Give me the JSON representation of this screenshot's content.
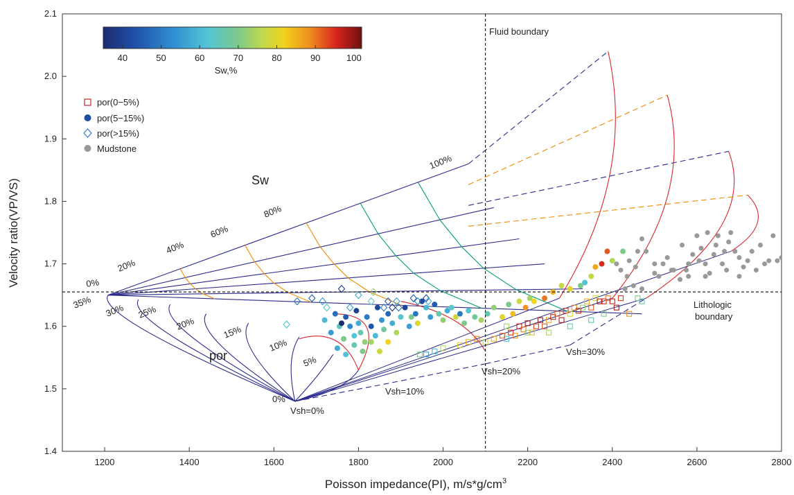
{
  "chart_data": {
    "type": "scatter",
    "xlabel": "Poisson impedance(PI), m/s*g/cm",
    "xlabel_sup": "3",
    "ylabel": "Velocity ratio(VP/VS)",
    "xlim": [
      1100,
      2800
    ],
    "ylim": [
      1.4,
      2.1
    ],
    "xticks": [
      "1200",
      "1400",
      "1600",
      "1800",
      "2000",
      "2200",
      "2400",
      "2600",
      "2800"
    ],
    "yticks": [
      "1.4",
      "1.5",
      "1.6",
      "1.7",
      "1.8",
      "1.9",
      "2.0",
      "2.1"
    ],
    "grid": false,
    "colorbar": {
      "label": "Sw,%",
      "ticks": [
        "40",
        "50",
        "60",
        "70",
        "80",
        "90",
        "100"
      ],
      "range": [
        35,
        102
      ],
      "colormap": "jet"
    },
    "legend": {
      "placement": "top-left",
      "items": [
        {
          "label": "por(0−5%)",
          "marker": "open-square",
          "color": "#c0272d"
        },
        {
          "label": "por(5−15%)",
          "marker": "filled-circle",
          "color": "#1f4e9c"
        },
        {
          "label": "por(>15%)",
          "marker": "open-diamond",
          "color": "#3a7bd5"
        },
        {
          "label": "Mudstone",
          "marker": "filled-circle",
          "color": "#999999"
        }
      ]
    },
    "reference_lines": [
      {
        "orientation": "vertical",
        "value": 2100,
        "label": "Fluid boundary"
      },
      {
        "orientation": "horizontal",
        "value": 1.655,
        "label_line1": "Lithologic",
        "label_line2": "boundary"
      }
    ],
    "annotations": {
      "sw_title": "Sw",
      "por_title": "por",
      "sw_labels": [
        "0%",
        "20%",
        "40%",
        "60%",
        "80%",
        "100%"
      ],
      "por_labels": [
        "35%",
        "30%",
        "25%",
        "20%",
        "15%",
        "10%",
        "5%",
        "0%"
      ],
      "vsh_labels": [
        "Vsh=0%",
        "Vsh=10%",
        "Vsh=20%",
        "Vsh=30%"
      ]
    },
    "template": {
      "solid_line_color": "#2b2a8c",
      "sw_line_color": "#f08a00",
      "green_line_color": "#00a06a",
      "red_line_color": "#d9252b",
      "vertex": [
        1650,
        1.48
      ],
      "por_points": [
        {
          "por": 35,
          "x": 1208,
          "y": 1.65
        },
        {
          "por": 30,
          "x": 1280,
          "y": 1.643
        },
        {
          "por": 25,
          "x": 1355,
          "y": 1.635
        },
        {
          "por": 20,
          "x": 1440,
          "y": 1.62
        },
        {
          "por": 15,
          "x": 1540,
          "y": 1.605
        },
        {
          "por": 10,
          "x": 1660,
          "y": 1.583
        },
        {
          "por": 5,
          "x": 1740,
          "y": 1.555
        },
        {
          "por": 0,
          "x": 1800,
          "y": 1.53
        }
      ],
      "sw100_end": [
        2060,
        1.86
      ],
      "shale_ends": [
        {
          "vsh": 10,
          "top": [
            2390,
            2.04
          ],
          "bottom": [
            2275,
            1.645
          ]
        },
        {
          "vsh": 20,
          "top": [
            2530,
            1.97
          ],
          "bottom": [
            2400,
            1.645
          ]
        },
        {
          "vsh": 30,
          "top": [
            2675,
            1.88
          ],
          "bottom": [
            2480,
            1.645
          ]
        },
        {
          "vsh": 40,
          "top": [
            2720,
            1.81
          ],
          "bottom": [
            2680,
            1.72
          ]
        }
      ],
      "vsh_base": [
        {
          "x": 1650,
          "y": 1.48
        },
        {
          "x": 1880,
          "y": 1.51
        },
        {
          "x": 2100,
          "y": 1.54
        },
        {
          "x": 2300,
          "y": 1.57
        },
        {
          "x": 2480,
          "y": 1.645
        }
      ]
    },
    "series": [
      {
        "name": "por(5−15%)",
        "points": [
          [
            1720,
            1.61,
            60
          ],
          [
            1735,
            1.59,
            55
          ],
          [
            1745,
            1.62,
            48
          ],
          [
            1755,
            1.6,
            65
          ],
          [
            1765,
            1.58,
            70
          ],
          [
            1770,
            1.615,
            45
          ],
          [
            1780,
            1.6,
            52
          ],
          [
            1790,
            1.585,
            62
          ],
          [
            1795,
            1.625,
            40
          ],
          [
            1800,
            1.605,
            58
          ],
          [
            1805,
            1.59,
            66
          ],
          [
            1815,
            1.575,
            72
          ],
          [
            1820,
            1.615,
            50
          ],
          [
            1830,
            1.6,
            44
          ],
          [
            1840,
            1.585,
            60
          ],
          [
            1845,
            1.63,
            42
          ],
          [
            1855,
            1.61,
            54
          ],
          [
            1860,
            1.595,
            68
          ],
          [
            1870,
            1.62,
            47
          ],
          [
            1880,
            1.605,
            58
          ],
          [
            1890,
            1.59,
            75
          ],
          [
            1900,
            1.615,
            63
          ],
          [
            1910,
            1.63,
            41
          ],
          [
            1920,
            1.6,
            56
          ],
          [
            1925,
            1.615,
            70
          ],
          [
            1935,
            1.62,
            49
          ],
          [
            1940,
            1.605,
            80
          ],
          [
            1950,
            1.64,
            42
          ],
          [
            1960,
            1.63,
            60
          ],
          [
            1970,
            1.615,
            55
          ],
          [
            1980,
            1.635,
            45
          ],
          [
            1990,
            1.62,
            66
          ],
          [
            2000,
            1.61,
            72
          ],
          [
            2010,
            1.625,
            58
          ],
          [
            2020,
            1.63,
            64
          ],
          [
            2030,
            1.615,
            78
          ],
          [
            2040,
            1.62,
            50
          ],
          [
            2050,
            1.605,
            70
          ],
          [
            2060,
            1.625,
            62
          ],
          [
            2075,
            1.615,
            68
          ],
          [
            2090,
            1.61,
            74
          ],
          [
            2105,
            1.62,
            66
          ],
          [
            2120,
            1.63,
            72
          ],
          [
            2140,
            1.615,
            80
          ],
          [
            2155,
            1.635,
            70
          ],
          [
            2165,
            1.62,
            84
          ],
          [
            2180,
            1.64,
            78
          ],
          [
            2195,
            1.63,
            88
          ],
          [
            2205,
            1.645,
            74
          ],
          [
            2215,
            1.64,
            82
          ],
          [
            2240,
            1.645,
            90
          ],
          [
            2260,
            1.655,
            85
          ],
          [
            2280,
            1.665,
            77
          ],
          [
            2300,
            1.66,
            80
          ],
          [
            2325,
            1.665,
            70
          ],
          [
            2335,
            1.67,
            62
          ],
          [
            2350,
            1.68,
            76
          ],
          [
            2360,
            1.695,
            86
          ],
          [
            2375,
            1.7,
            95
          ],
          [
            2388,
            1.72,
            92
          ],
          [
            2400,
            1.705,
            75
          ],
          [
            2425,
            1.72,
            70
          ],
          [
            1750,
            1.565,
            58
          ],
          [
            1770,
            1.555,
            62
          ],
          [
            1790,
            1.57,
            66
          ],
          [
            1810,
            1.56,
            70
          ],
          [
            1830,
            1.575,
            74
          ],
          [
            1850,
            1.56,
            78
          ],
          [
            1870,
            1.575,
            82
          ],
          [
            1760,
            1.605,
            30
          ]
        ]
      },
      {
        "name": "por(0−5%)",
        "points": [
          [
            2040,
            1.57,
            80
          ],
          [
            2060,
            1.575,
            85
          ],
          [
            2080,
            1.58,
            90
          ],
          [
            2100,
            1.575,
            78
          ],
          [
            2120,
            1.58,
            86
          ],
          [
            2140,
            1.585,
            92
          ],
          [
            2150,
            1.6,
            74
          ],
          [
            2160,
            1.59,
            95
          ],
          [
            2170,
            1.585,
            88
          ],
          [
            2180,
            1.6,
            96
          ],
          [
            2190,
            1.595,
            90
          ],
          [
            2200,
            1.605,
            98
          ],
          [
            2210,
            1.59,
            84
          ],
          [
            2220,
            1.6,
            94
          ],
          [
            2230,
            1.61,
            99
          ],
          [
            2240,
            1.6,
            92
          ],
          [
            2250,
            1.61,
            86
          ],
          [
            2260,
            1.615,
            96
          ],
          [
            2270,
            1.62,
            90
          ],
          [
            2280,
            1.61,
            98
          ],
          [
            2290,
            1.625,
            94
          ],
          [
            2300,
            1.62,
            80
          ],
          [
            2310,
            1.63,
            88
          ],
          [
            2320,
            1.625,
            96
          ],
          [
            2330,
            1.63,
            72
          ],
          [
            2340,
            1.64,
            85
          ],
          [
            2350,
            1.63,
            92
          ],
          [
            2360,
            1.645,
            78
          ],
          [
            2370,
            1.64,
            98
          ],
          [
            2380,
            1.64,
            95
          ],
          [
            2390,
            1.645,
            90
          ],
          [
            2400,
            1.64,
            97
          ],
          [
            2410,
            1.63,
            99
          ],
          [
            2420,
            1.645,
            94
          ],
          [
            2440,
            1.62,
            88
          ],
          [
            2460,
            1.645,
            70
          ],
          [
            2470,
            1.64,
            66
          ],
          [
            2000,
            1.565,
            75
          ],
          [
            1980,
            1.56,
            60
          ],
          [
            1960,
            1.555,
            55
          ],
          [
            1945,
            1.555,
            70
          ],
          [
            2150,
            1.58,
            62
          ],
          [
            2200,
            1.59,
            72
          ],
          [
            2250,
            1.59,
            75
          ],
          [
            2300,
            1.6,
            68
          ],
          [
            2350,
            1.61,
            65
          ],
          [
            2380,
            1.62,
            70
          ]
        ]
      },
      {
        "name": "por(>15%)",
        "points": [
          [
            1630,
            1.603,
            62
          ],
          [
            1655,
            1.64,
            50
          ],
          [
            1690,
            1.645,
            45
          ],
          [
            1715,
            1.64,
            55
          ],
          [
            1725,
            1.63,
            62
          ],
          [
            1760,
            1.66,
            40
          ],
          [
            1780,
            1.63,
            55
          ],
          [
            1800,
            1.65,
            58
          ],
          [
            1830,
            1.64,
            65
          ],
          [
            1835,
            1.655,
            72
          ],
          [
            1860,
            1.63,
            50
          ],
          [
            1870,
            1.64,
            45
          ],
          [
            1890,
            1.64,
            55
          ],
          [
            1895,
            1.63,
            48
          ],
          [
            1930,
            1.645,
            44
          ],
          [
            1940,
            1.64,
            50
          ],
          [
            1960,
            1.645,
            42
          ],
          [
            1965,
            1.64,
            58
          ],
          [
            1880,
            1.63,
            38
          ]
        ]
      },
      {
        "name": "Mudstone",
        "points": [
          [
            2410,
            1.7
          ],
          [
            2420,
            1.69
          ],
          [
            2435,
            1.68
          ],
          [
            2440,
            1.705
          ],
          [
            2455,
            1.695
          ],
          [
            2460,
            1.72
          ],
          [
            2470,
            1.74
          ],
          [
            2480,
            1.72
          ],
          [
            2500,
            1.685
          ],
          [
            2510,
            1.68
          ],
          [
            2520,
            1.7
          ],
          [
            2530,
            1.71
          ],
          [
            2545,
            1.69
          ],
          [
            2560,
            1.675
          ],
          [
            2565,
            1.73
          ],
          [
            2575,
            1.69
          ],
          [
            2580,
            1.7
          ],
          [
            2590,
            1.715
          ],
          [
            2600,
            1.745
          ],
          [
            2605,
            1.705
          ],
          [
            2610,
            1.725
          ],
          [
            2620,
            1.7
          ],
          [
            2625,
            1.75
          ],
          [
            2630,
            1.685
          ],
          [
            2640,
            1.715
          ],
          [
            2645,
            1.73
          ],
          [
            2650,
            1.745
          ],
          [
            2660,
            1.7
          ],
          [
            2665,
            1.72
          ],
          [
            2670,
            1.69
          ],
          [
            2675,
            1.735
          ],
          [
            2680,
            1.75
          ],
          [
            2690,
            1.72
          ],
          [
            2700,
            1.71
          ],
          [
            2710,
            1.695
          ],
          [
            2720,
            1.705
          ],
          [
            2730,
            1.72
          ],
          [
            2740,
            1.69
          ],
          [
            2750,
            1.73
          ],
          [
            2760,
            1.7
          ],
          [
            2770,
            1.705
          ],
          [
            2780,
            1.745
          ],
          [
            2790,
            1.705
          ],
          [
            2800,
            1.71
          ],
          [
            2430,
            1.66
          ],
          [
            2450,
            1.665
          ],
          [
            2470,
            1.66
          ],
          [
            2500,
            1.7
          ],
          [
            2540,
            1.69
          ],
          [
            2580,
            1.68
          ],
          [
            2620,
            1.68
          ],
          [
            2700,
            1.68
          ]
        ]
      }
    ]
  }
}
